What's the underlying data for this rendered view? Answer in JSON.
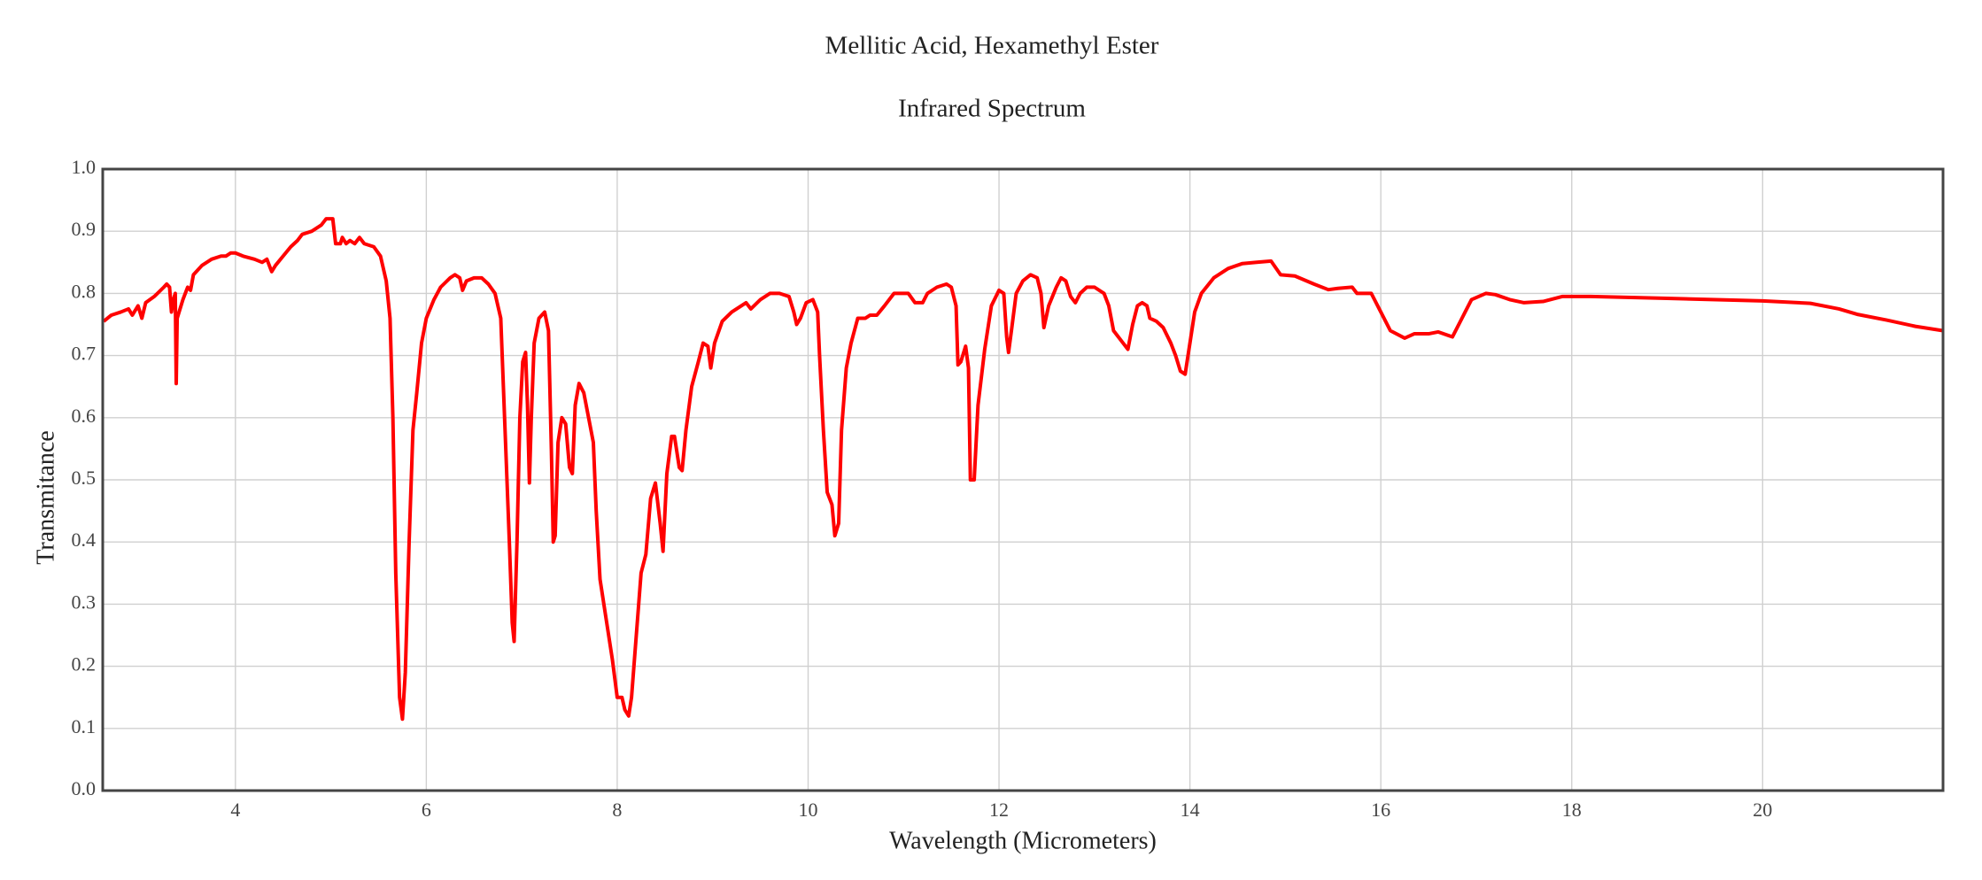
{
  "chart_data": {
    "type": "line",
    "title": "Mellitic Acid, Hexamethyl Ester",
    "subtitle": "Infrared Spectrum",
    "xlabel": "Wavelength (Micrometers)",
    "ylabel": "Transmitance",
    "xlim": [
      2.61,
      21.89
    ],
    "ylim": [
      0,
      1
    ],
    "xticks": [
      4,
      6,
      8,
      10,
      12,
      14,
      16,
      18,
      20
    ],
    "yticks": [
      {
        "value": 0,
        "label": "0.0"
      },
      0.1,
      0.2,
      0.3,
      0.4,
      0.5,
      0.6,
      0.7,
      0.8,
      0.9,
      {
        "value": 1,
        "label": "1.0"
      }
    ],
    "grid": true,
    "x": [
      2.62,
      2.7,
      2.8,
      2.88,
      2.92,
      2.98,
      3.02,
      3.06,
      3.15,
      3.25,
      3.28,
      3.31,
      3.33,
      3.35,
      3.37,
      3.38,
      3.39,
      3.45,
      3.5,
      3.53,
      3.56,
      3.65,
      3.75,
      3.85,
      3.9,
      3.95,
      4.0,
      4.08,
      4.2,
      4.28,
      4.33,
      4.38,
      4.42,
      4.5,
      4.58,
      4.65,
      4.7,
      4.8,
      4.9,
      4.95,
      5.02,
      5.05,
      5.1,
      5.12,
      5.16,
      5.2,
      5.25,
      5.3,
      5.35,
      5.45,
      5.52,
      5.58,
      5.62,
      5.65,
      5.68,
      5.72,
      5.75,
      5.78,
      5.82,
      5.86,
      5.9,
      5.95,
      6.0,
      6.08,
      6.15,
      6.25,
      6.3,
      6.35,
      6.38,
      6.42,
      6.5,
      6.58,
      6.65,
      6.72,
      6.78,
      6.82,
      6.87,
      6.9,
      6.92,
      6.95,
      6.98,
      7.01,
      7.04,
      7.06,
      7.08,
      7.1,
      7.13,
      7.18,
      7.24,
      7.28,
      7.31,
      7.33,
      7.35,
      7.38,
      7.42,
      7.46,
      7.5,
      7.53,
      7.56,
      7.6,
      7.65,
      7.7,
      7.75,
      7.78,
      7.82,
      7.86,
      7.9,
      7.95,
      8.0,
      8.05,
      8.08,
      8.12,
      8.15,
      8.2,
      8.25,
      8.3,
      8.35,
      8.4,
      8.45,
      8.48,
      8.52,
      8.57,
      8.6,
      8.65,
      8.68,
      8.72,
      8.78,
      8.85,
      8.9,
      8.95,
      8.98,
      9.02,
      9.1,
      9.2,
      9.3,
      9.35,
      9.4,
      9.5,
      9.6,
      9.7,
      9.8,
      9.85,
      9.88,
      9.92,
      9.98,
      10.05,
      10.1,
      10.12,
      10.16,
      10.2,
      10.25,
      10.28,
      10.32,
      10.35,
      10.4,
      10.45,
      10.52,
      10.6,
      10.65,
      10.72,
      10.8,
      10.9,
      11.0,
      11.05,
      11.12,
      11.2,
      11.25,
      11.35,
      11.45,
      11.5,
      11.55,
      11.57,
      11.6,
      11.65,
      11.68,
      11.7,
      11.74,
      11.78,
      11.85,
      11.92,
      12.0,
      12.05,
      12.08,
      12.1,
      12.13,
      12.18,
      12.25,
      12.33,
      12.4,
      12.44,
      12.47,
      12.52,
      12.6,
      12.65,
      12.7,
      12.75,
      12.8,
      12.85,
      12.92,
      13.0,
      13.1,
      13.15,
      13.2,
      13.3,
      13.35,
      13.4,
      13.45,
      13.5,
      13.55,
      13.58,
      13.65,
      13.72,
      13.8,
      13.85,
      13.9,
      13.95,
      14.0,
      14.05,
      14.12,
      14.25,
      14.4,
      14.55,
      14.7,
      14.85,
      14.95,
      15.1,
      15.3,
      15.45,
      15.55,
      15.7,
      15.75,
      15.9,
      16.0,
      16.1,
      16.25,
      16.35,
      16.5,
      16.6,
      16.75,
      16.85,
      16.95,
      17.1,
      17.2,
      17.35,
      17.5,
      17.7,
      17.9,
      18.2,
      19.0,
      20.0,
      20.5,
      20.8,
      21.0,
      21.3,
      21.6,
      21.89
    ],
    "series": [
      {
        "color": "#ff0000",
        "values": [
          0.755,
          0.765,
          0.77,
          0.775,
          0.765,
          0.78,
          0.76,
          0.785,
          0.795,
          0.81,
          0.815,
          0.81,
          0.77,
          0.79,
          0.8,
          0.655,
          0.76,
          0.79,
          0.81,
          0.805,
          0.83,
          0.845,
          0.855,
          0.86,
          0.86,
          0.865,
          0.865,
          0.86,
          0.855,
          0.85,
          0.855,
          0.835,
          0.845,
          0.86,
          0.875,
          0.885,
          0.895,
          0.9,
          0.91,
          0.92,
          0.92,
          0.88,
          0.88,
          0.89,
          0.88,
          0.885,
          0.88,
          0.89,
          0.88,
          0.875,
          0.86,
          0.82,
          0.76,
          0.6,
          0.35,
          0.15,
          0.115,
          0.19,
          0.4,
          0.58,
          0.64,
          0.72,
          0.76,
          0.79,
          0.81,
          0.825,
          0.83,
          0.825,
          0.805,
          0.82,
          0.825,
          0.825,
          0.815,
          0.8,
          0.76,
          0.6,
          0.4,
          0.27,
          0.24,
          0.4,
          0.6,
          0.69,
          0.705,
          0.62,
          0.495,
          0.6,
          0.72,
          0.76,
          0.77,
          0.74,
          0.55,
          0.4,
          0.41,
          0.56,
          0.6,
          0.59,
          0.52,
          0.51,
          0.62,
          0.655,
          0.64,
          0.6,
          0.56,
          0.45,
          0.34,
          0.3,
          0.26,
          0.21,
          0.15,
          0.15,
          0.13,
          0.12,
          0.15,
          0.25,
          0.35,
          0.38,
          0.47,
          0.495,
          0.43,
          0.385,
          0.51,
          0.57,
          0.57,
          0.52,
          0.515,
          0.58,
          0.65,
          0.69,
          0.72,
          0.715,
          0.68,
          0.72,
          0.755,
          0.77,
          0.78,
          0.785,
          0.775,
          0.79,
          0.8,
          0.8,
          0.795,
          0.77,
          0.75,
          0.76,
          0.785,
          0.79,
          0.77,
          0.7,
          0.58,
          0.48,
          0.46,
          0.41,
          0.43,
          0.58,
          0.68,
          0.72,
          0.76,
          0.76,
          0.765,
          0.765,
          0.78,
          0.8,
          0.8,
          0.8,
          0.785,
          0.785,
          0.8,
          0.81,
          0.815,
          0.81,
          0.78,
          0.685,
          0.69,
          0.715,
          0.68,
          0.5,
          0.5,
          0.62,
          0.71,
          0.78,
          0.805,
          0.8,
          0.73,
          0.705,
          0.74,
          0.8,
          0.82,
          0.83,
          0.825,
          0.8,
          0.745,
          0.78,
          0.81,
          0.825,
          0.82,
          0.795,
          0.785,
          0.8,
          0.81,
          0.81,
          0.8,
          0.78,
          0.74,
          0.72,
          0.71,
          0.75,
          0.78,
          0.785,
          0.78,
          0.76,
          0.755,
          0.745,
          0.72,
          0.7,
          0.675,
          0.67,
          0.72,
          0.77,
          0.8,
          0.825,
          0.84,
          0.848,
          0.85,
          0.852,
          0.83,
          0.828,
          0.815,
          0.806,
          0.808,
          0.81,
          0.8,
          0.8,
          0.77,
          0.74,
          0.728,
          0.735,
          0.735,
          0.738,
          0.73,
          0.76,
          0.79,
          0.8,
          0.798,
          0.79,
          0.785,
          0.787,
          0.795,
          0.795,
          0.792,
          0.788,
          0.784,
          0.775,
          0.766,
          0.757,
          0.747,
          0.74
        ]
      }
    ]
  }
}
